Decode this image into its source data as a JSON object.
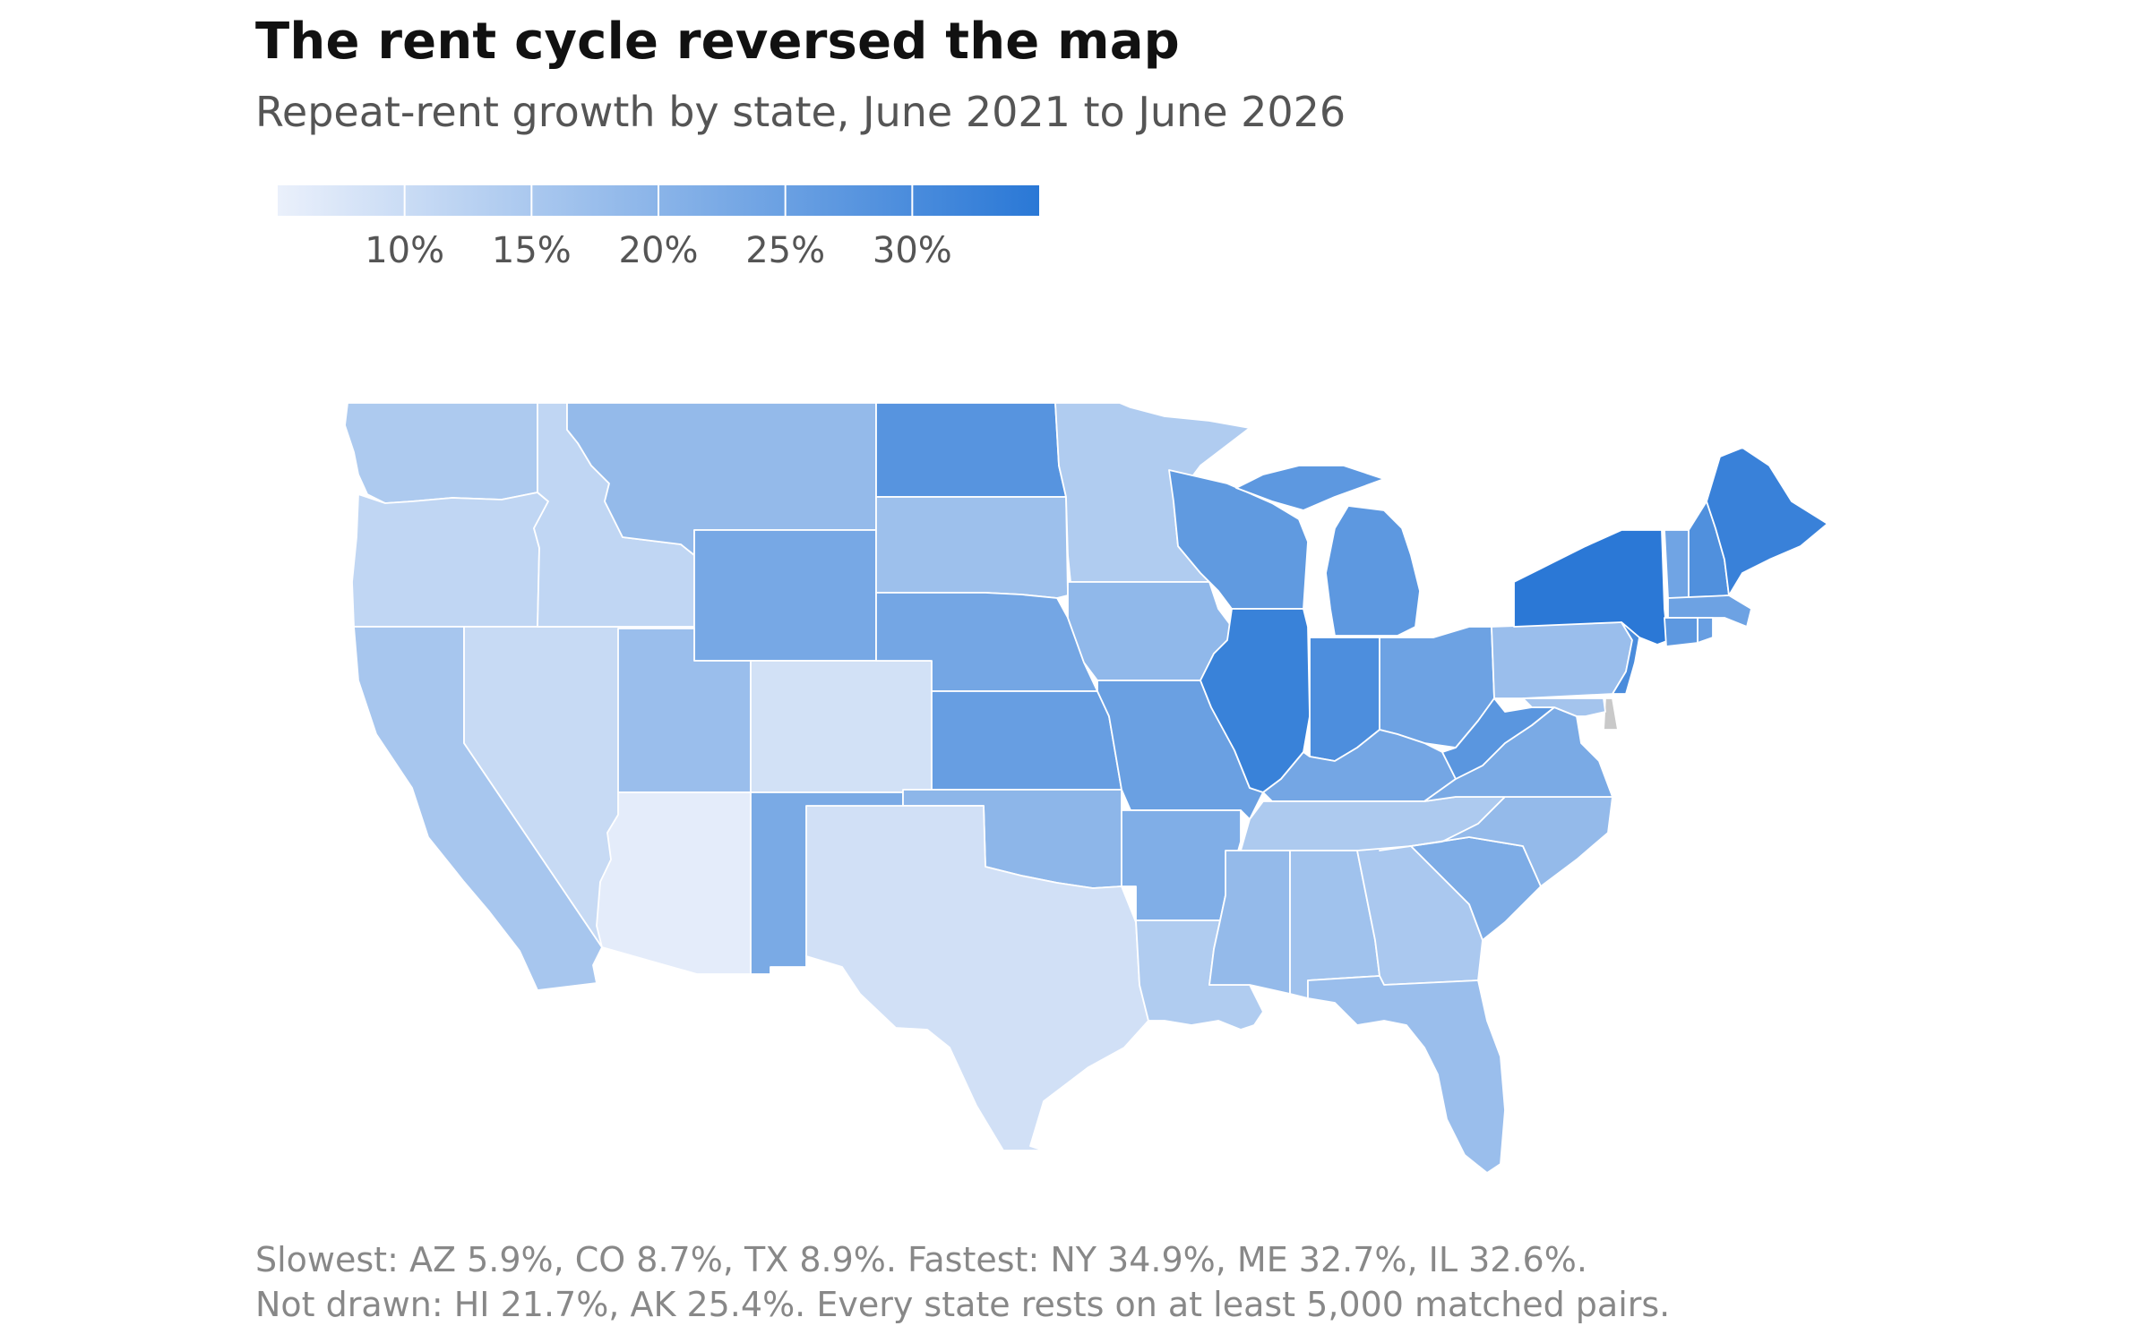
{
  "title": "The rent cycle reversed the map",
  "subtitle": "Repeat-rent growth by state, June 2021 to June 2026",
  "legend": {
    "min": 5,
    "max": 35,
    "ticks": [
      {
        "value": 10,
        "label": "10%"
      },
      {
        "value": 15,
        "label": "15%"
      },
      {
        "value": 20,
        "label": "20%"
      },
      {
        "value": 25,
        "label": "25%"
      },
      {
        "value": 30,
        "label": "30%"
      }
    ],
    "color_low": "#eaf0fb",
    "color_high": "#2a78d6",
    "no_data_color": "#c9c9c9"
  },
  "footnote": {
    "line1": "Slowest: AZ 5.9%, CO 8.7%, TX 8.9%.   Fastest: NY 34.9%, ME 32.7%, IL 32.6%.",
    "line2": "Not drawn: HI 21.7%, AK 25.4%.   Every state rests on at least 5,000 matched pairs."
  },
  "states": [
    {
      "code": "WA",
      "value": 14.5
    },
    {
      "code": "OR",
      "value": 11.5
    },
    {
      "code": "CA",
      "value": 15.5
    },
    {
      "code": "NV",
      "value": 10.5
    },
    {
      "code": "ID",
      "value": 11.5
    },
    {
      "code": "MT",
      "value": 18.5
    },
    {
      "code": "WY",
      "value": 23.0
    },
    {
      "code": "UT",
      "value": 17.5
    },
    {
      "code": "CO",
      "value": 8.7
    },
    {
      "code": "AZ",
      "value": 5.9
    },
    {
      "code": "NM",
      "value": 22.5
    },
    {
      "code": "ND",
      "value": 28.0
    },
    {
      "code": "SD",
      "value": 17.0
    },
    {
      "code": "NE",
      "value": 23.5
    },
    {
      "code": "KS",
      "value": 25.5
    },
    {
      "code": "OK",
      "value": 19.5
    },
    {
      "code": "TX",
      "value": 8.9
    },
    {
      "code": "MN",
      "value": 14.0
    },
    {
      "code": "IA",
      "value": 19.0
    },
    {
      "code": "MO",
      "value": 25.0
    },
    {
      "code": "AR",
      "value": 21.5
    },
    {
      "code": "LA",
      "value": 14.0
    },
    {
      "code": "WI",
      "value": 26.5
    },
    {
      "code": "IL",
      "value": 32.6
    },
    {
      "code": "MI",
      "value": 27.0
    },
    {
      "code": "IN",
      "value": 29.5
    },
    {
      "code": "OH",
      "value": 24.5
    },
    {
      "code": "KY",
      "value": 23.5
    },
    {
      "code": "TN",
      "value": 14.5
    },
    {
      "code": "MS",
      "value": 18.5
    },
    {
      "code": "AL",
      "value": 16.5
    },
    {
      "code": "GA",
      "value": 15.0
    },
    {
      "code": "FL",
      "value": 17.5
    },
    {
      "code": "SC",
      "value": 22.0
    },
    {
      "code": "NC",
      "value": 18.5
    },
    {
      "code": "VA",
      "value": 22.5
    },
    {
      "code": "WV",
      "value": 27.5
    },
    {
      "code": "PA",
      "value": 17.5
    },
    {
      "code": "NY",
      "value": 34.9
    },
    {
      "code": "VT",
      "value": 24.0
    },
    {
      "code": "NH",
      "value": 29.0
    },
    {
      "code": "ME",
      "value": 32.7
    },
    {
      "code": "MA",
      "value": 24.5
    },
    {
      "code": "RI",
      "value": 25.5
    },
    {
      "code": "CT",
      "value": 27.0
    },
    {
      "code": "NJ",
      "value": 30.0
    },
    {
      "code": "DE",
      "value": null
    },
    {
      "code": "MD",
      "value": 16.0
    }
  ]
}
